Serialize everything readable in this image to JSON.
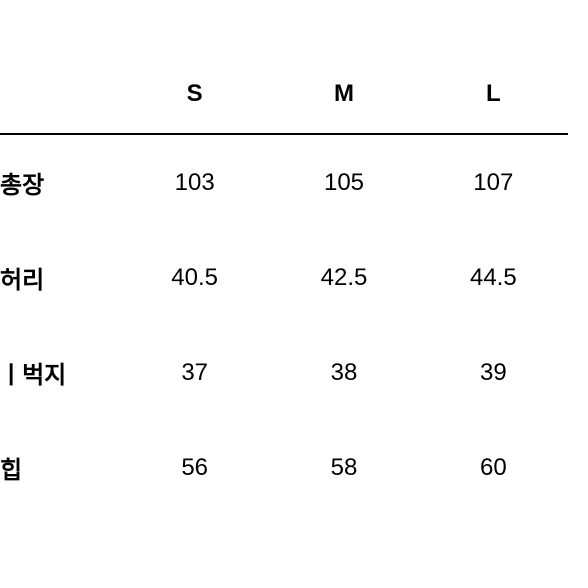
{
  "table": {
    "type": "table",
    "background_color": "#ffffff",
    "text_color": "#000000",
    "border_color": "#000000",
    "header_fontsize": 24,
    "header_fontweight": 700,
    "cell_fontsize": 24,
    "cell_fontweight": 400,
    "label_fontweight": 700,
    "columns": [
      "",
      "S",
      "M",
      "L"
    ],
    "rows": [
      {
        "label": "총장",
        "values": [
          "103",
          "105",
          "107"
        ]
      },
      {
        "label": "허리",
        "values": [
          "40.5",
          "42.5",
          "44.5"
        ]
      },
      {
        "label": "ㅣ벅지",
        "values": [
          "37",
          "38",
          "39"
        ]
      },
      {
        "label": "힙",
        "values": [
          "56",
          "58",
          "60"
        ]
      }
    ]
  }
}
